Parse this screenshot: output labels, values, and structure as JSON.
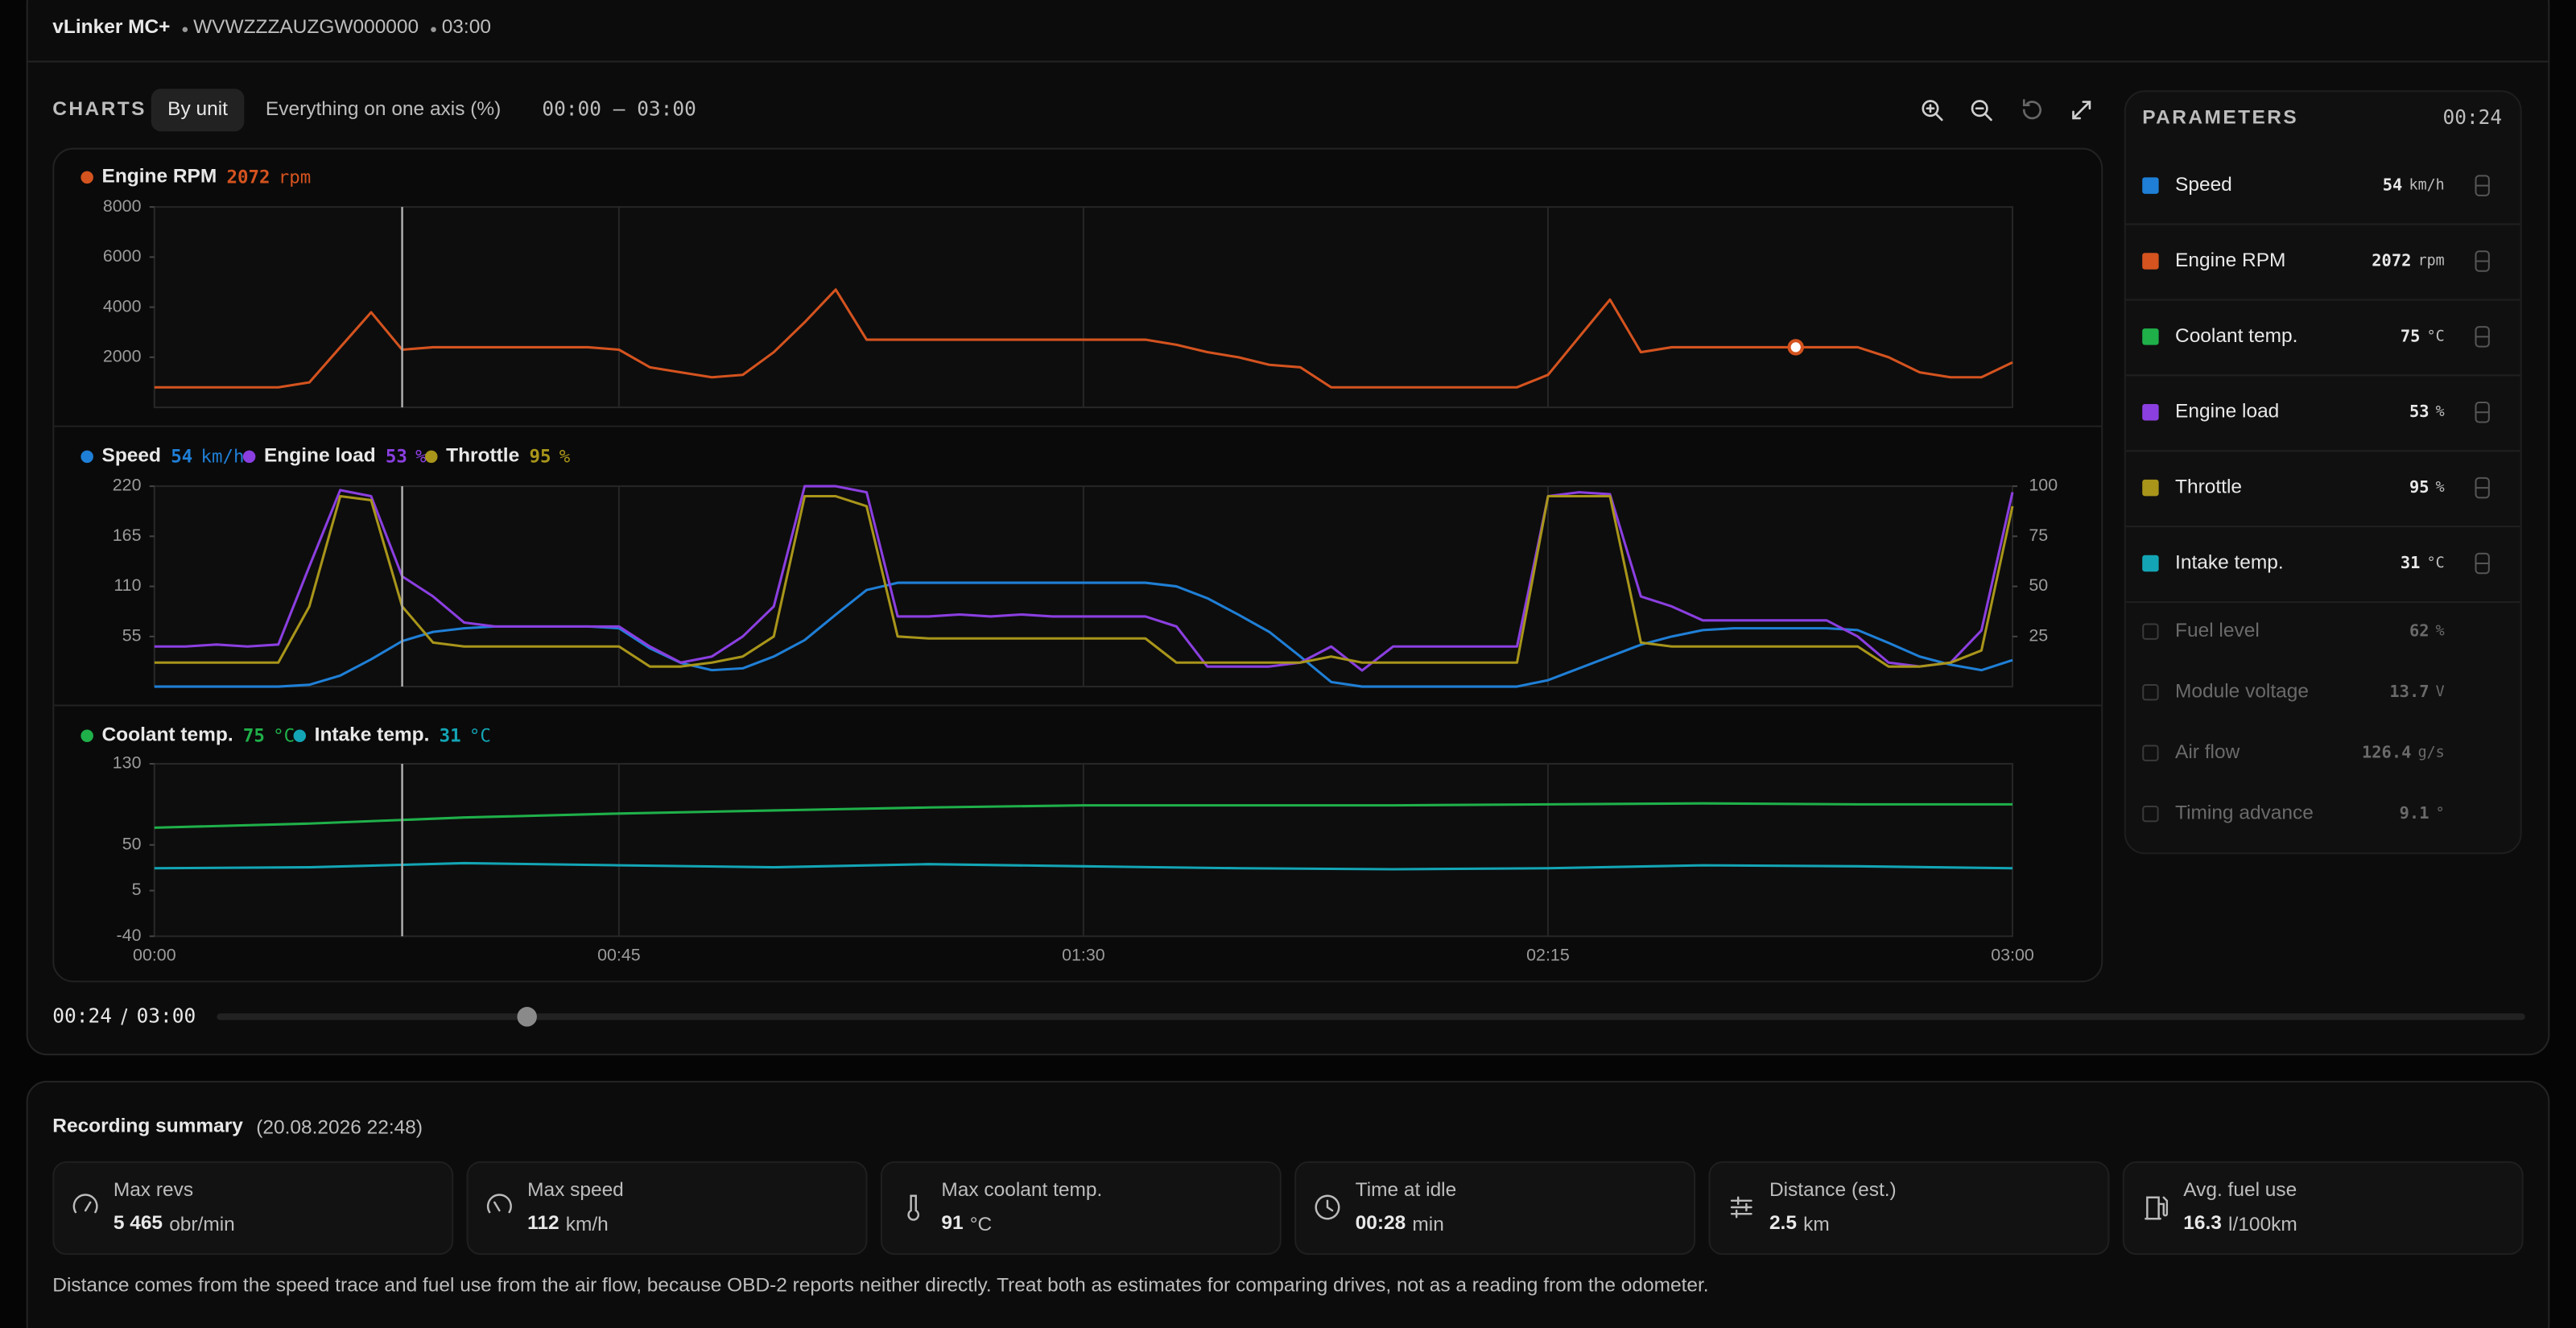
{
  "header": {
    "device": "vLinker MC+",
    "vin": "WVWZZZAUZGW000000"
  },
  "toolbar": {
    "title": "CHARTS",
    "modes": [
      "By unit",
      "Everything on one axis (%)"
    ],
    "active_mode": 0,
    "range": "00:00 – 03:00"
  },
  "playback": {
    "position": {
      "value": 24,
      "label": "00:24"
    },
    "duration": {
      "value": 180,
      "label": "03:00"
    }
  },
  "chart_data": [
    {
      "type": "line",
      "xlim": [
        0,
        180
      ],
      "xticks": [
        0,
        45,
        90,
        135,
        180
      ],
      "ylim": [
        0,
        8000
      ],
      "yticks": [
        2000,
        4000,
        6000,
        8000
      ],
      "highlight": 159,
      "x": [
        0,
        3,
        6,
        9,
        12,
        15,
        18,
        21,
        24,
        27,
        30,
        33,
        36,
        39,
        42,
        45,
        48,
        51,
        54,
        57,
        60,
        63,
        66,
        69,
        72,
        75,
        78,
        81,
        84,
        87,
        90,
        93,
        96,
        99,
        102,
        105,
        108,
        111,
        114,
        117,
        120,
        123,
        126,
        129,
        132,
        135,
        138,
        141,
        144,
        147,
        150,
        153,
        156,
        159,
        162,
        165,
        168,
        171,
        174,
        177,
        180
      ],
      "series": [
        {
          "name": "Engine RPM",
          "color": "#d4531f",
          "current": 2072,
          "unit": "rpm",
          "values": [
            800,
            800,
            800,
            800,
            800,
            1000,
            2400,
            3800,
            2300,
            2400,
            2400,
            2400,
            2400,
            2400,
            2400,
            2300,
            1600,
            1400,
            1200,
            1300,
            2200,
            3400,
            4700,
            2700,
            2700,
            2700,
            2700,
            2700,
            2700,
            2700,
            2700,
            2700,
            2700,
            2500,
            2200,
            2000,
            1700,
            1600,
            800,
            800,
            800,
            800,
            800,
            800,
            800,
            1300,
            2800,
            4300,
            2200,
            2400,
            2400,
            2400,
            2400,
            2400,
            2400,
            2400,
            2000,
            1400,
            1200,
            1200,
            1800
          ]
        }
      ]
    },
    {
      "type": "line",
      "xlim": [
        0,
        180
      ],
      "xticks": [
        0,
        45,
        90,
        135,
        180
      ],
      "ylim": [
        0,
        220
      ],
      "yticks": [
        55,
        110,
        165,
        220
      ],
      "y2lim": [
        0,
        100
      ],
      "y2ticks": [
        25,
        50,
        75,
        100
      ],
      "x": [
        0,
        3,
        6,
        9,
        12,
        15,
        18,
        21,
        24,
        27,
        30,
        33,
        36,
        39,
        42,
        45,
        48,
        51,
        54,
        57,
        60,
        63,
        66,
        69,
        72,
        75,
        78,
        81,
        84,
        87,
        90,
        93,
        96,
        99,
        102,
        105,
        108,
        111,
        114,
        117,
        120,
        123,
        126,
        129,
        132,
        135,
        138,
        141,
        144,
        147,
        150,
        153,
        156,
        159,
        162,
        165,
        168,
        171,
        174,
        177,
        180
      ],
      "series": [
        {
          "name": "Speed",
          "color": "#1f7fd6",
          "current": 54,
          "unit": "km/h",
          "values": [
            0,
            0,
            0,
            0,
            0,
            2,
            12,
            30,
            50,
            60,
            64,
            66,
            66,
            66,
            66,
            64,
            42,
            26,
            18,
            20,
            33,
            51,
            79,
            106,
            114,
            114,
            114,
            114,
            114,
            114,
            114,
            114,
            114,
            110,
            97,
            79,
            60,
            33,
            5,
            0,
            0,
            0,
            0,
            0,
            0,
            7,
            20,
            33,
            46,
            55,
            62,
            64,
            64,
            64,
            64,
            62,
            48,
            33,
            24,
            18,
            29
          ]
        },
        {
          "name": "Engine load",
          "color": "#8b3fe0",
          "current": 53,
          "unit": "%",
          "axis": "y2",
          "values": [
            20,
            20,
            21,
            20,
            21,
            60,
            98,
            95,
            55,
            45,
            32,
            30,
            30,
            30,
            30,
            30,
            20,
            12,
            15,
            25,
            40,
            100,
            100,
            97,
            35,
            35,
            36,
            35,
            36,
            35,
            35,
            35,
            35,
            30,
            10,
            10,
            10,
            12,
            20,
            8,
            20,
            20,
            20,
            20,
            20,
            95,
            97,
            96,
            45,
            40,
            33,
            33,
            33,
            33,
            33,
            25,
            12,
            10,
            12,
            28,
            97
          ]
        },
        {
          "name": "Throttle",
          "color": "#a8951a",
          "current": 95,
          "unit": "%",
          "axis": "y2",
          "values": [
            12,
            12,
            12,
            12,
            12,
            40,
            95,
            93,
            40,
            22,
            20,
            20,
            20,
            20,
            20,
            20,
            10,
            10,
            12,
            15,
            25,
            95,
            95,
            90,
            25,
            24,
            24,
            24,
            24,
            24,
            24,
            24,
            24,
            12,
            12,
            12,
            12,
            12,
            15,
            12,
            12,
            12,
            12,
            12,
            12,
            95,
            95,
            95,
            22,
            20,
            20,
            20,
            20,
            20,
            20,
            20,
            10,
            10,
            12,
            18,
            90
          ]
        }
      ]
    },
    {
      "type": "line",
      "xlim": [
        0,
        180
      ],
      "xticks": [
        {
          "value": 0,
          "label": "00:00"
        },
        {
          "value": 45,
          "label": "00:45"
        },
        {
          "value": 90,
          "label": "01:30"
        },
        {
          "value": 135,
          "label": "02:15"
        },
        {
          "value": 180,
          "label": "03:00"
        }
      ],
      "ylim": [
        -40,
        130
      ],
      "yticks": [
        -40,
        5,
        50,
        130
      ],
      "x": [
        0,
        15,
        30,
        45,
        60,
        75,
        90,
        105,
        120,
        135,
        150,
        165,
        180
      ],
      "series": [
        {
          "name": "Coolant temp.",
          "color": "#1fb04a",
          "current": 75,
          "unit": "°C",
          "values": [
            67,
            71,
            77,
            81,
            84,
            87,
            89,
            89,
            89,
            90,
            91,
            90,
            90
          ]
        },
        {
          "name": "Intake temp.",
          "color": "#13a5b5",
          "current": 31,
          "unit": "°C",
          "values": [
            27,
            28,
            32,
            30,
            28,
            31,
            29,
            27,
            26,
            27,
            30,
            29,
            27
          ]
        }
      ]
    }
  ],
  "parameters": {
    "title": "PARAMETERS",
    "items": [
      {
        "name": "Speed",
        "value": 54,
        "unit": "km/h",
        "color": "#1f7fd6",
        "enabled": true
      },
      {
        "name": "Engine RPM",
        "value": 2072,
        "unit": "rpm",
        "color": "#d4531f",
        "enabled": true
      },
      {
        "name": "Coolant temp.",
        "value": 75,
        "unit": "°C",
        "color": "#1fb04a",
        "enabled": true
      },
      {
        "name": "Engine load",
        "value": 53,
        "unit": "%",
        "color": "#8b3fe0",
        "enabled": true
      },
      {
        "name": "Throttle",
        "value": 95,
        "unit": "%",
        "color": "#a8951a",
        "enabled": true
      },
      {
        "name": "Intake temp.",
        "value": 31,
        "unit": "°C",
        "color": "#13a5b5",
        "enabled": true
      },
      {
        "name": "Fuel level",
        "value": 62,
        "unit": "%",
        "color": "#555555",
        "enabled": false
      },
      {
        "name": "Module voltage",
        "value": 13.7,
        "unit": "V",
        "color": "#555555",
        "enabled": false
      },
      {
        "name": "Air flow",
        "value": 126.4,
        "unit": "g/s",
        "color": "#555555",
        "enabled": false
      },
      {
        "name": "Timing advance",
        "value": 9.1,
        "unit": "°",
        "color": "#555555",
        "enabled": false
      }
    ]
  },
  "summary": {
    "title": "Recording summary",
    "date": "(20.08.2026 22:48)",
    "cards": [
      {
        "label": "Max revs",
        "value": "5 465",
        "unit": "obr/min"
      },
      {
        "label": "Max speed",
        "value": "112",
        "unit": "km/h"
      },
      {
        "label": "Max coolant temp.",
        "value": "91",
        "unit": "°C"
      },
      {
        "label": "Time at idle",
        "value": "00:28",
        "unit": "min"
      },
      {
        "label": "Distance (est.)",
        "value": "2.5",
        "unit": "km"
      },
      {
        "label": "Avg. fuel use",
        "value": "16.3",
        "unit": "l/100km"
      }
    ],
    "note": "Distance comes from the speed trace and fuel use from the air flow, because OBD-2 reports neither directly. Treat both as estimates for comparing drives, not as a reading from the odometer."
  }
}
